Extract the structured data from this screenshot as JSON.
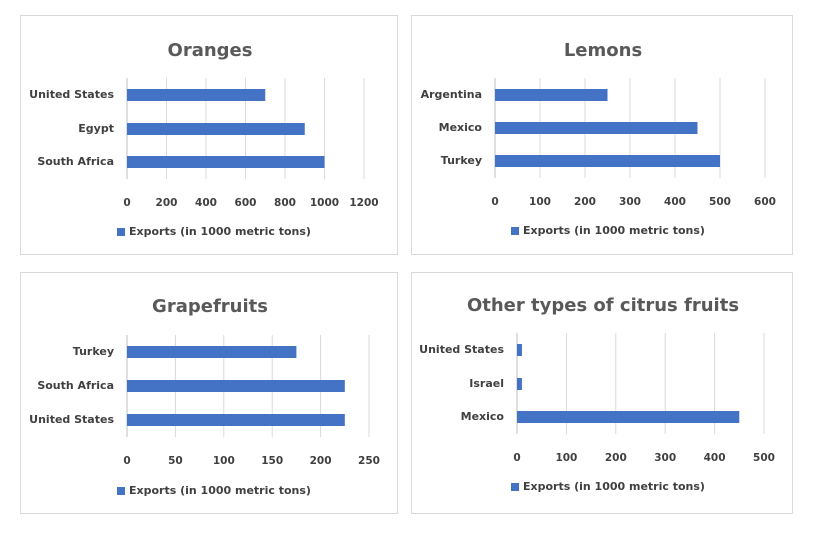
{
  "chart_data": [
    {
      "type": "bar",
      "orientation": "horizontal",
      "title": "Oranges",
      "categories": [
        "United States",
        "Egypt",
        "South Africa"
      ],
      "series": [
        {
          "name": "Exports (in 1000 metric tons)",
          "values": [
            700,
            900,
            1000
          ]
        }
      ],
      "xlim": [
        0,
        1200
      ],
      "xticks": [
        "0",
        "200",
        "400",
        "600",
        "800",
        "1000",
        "1200"
      ],
      "grid": true,
      "legend": "bottom",
      "color": "#4472c4"
    },
    {
      "type": "bar",
      "orientation": "horizontal",
      "title": "Lemons",
      "categories": [
        "Argentina",
        "Mexico",
        "Turkey"
      ],
      "series": [
        {
          "name": "Exports (in 1000 metric tons)",
          "values": [
            250,
            450,
            500
          ]
        }
      ],
      "xlim": [
        0,
        600
      ],
      "xticks": [
        "0",
        "100",
        "200",
        "300",
        "400",
        "500",
        "600"
      ],
      "grid": true,
      "legend": "bottom",
      "color": "#4472c4"
    },
    {
      "type": "bar",
      "orientation": "horizontal",
      "title": "Grapefruits",
      "categories": [
        "Turkey",
        "South Africa",
        "United States"
      ],
      "series": [
        {
          "name": "Exports (in 1000 metric tons)",
          "values": [
            175,
            225,
            225
          ]
        }
      ],
      "xlim": [
        0,
        250
      ],
      "xticks": [
        "0",
        "50",
        "100",
        "150",
        "200",
        "250"
      ],
      "grid": true,
      "legend": "bottom",
      "color": "#4472c4"
    },
    {
      "type": "bar",
      "orientation": "horizontal",
      "title": "Other types of citrus fruits",
      "categories": [
        "United States",
        "Israel",
        "Mexico"
      ],
      "series": [
        {
          "name": "Exports (in 1000 metric tons)",
          "values": [
            10,
            10,
            450
          ]
        }
      ],
      "xlim": [
        0,
        500
      ],
      "xticks": [
        "0",
        "100",
        "200",
        "300",
        "400",
        "500"
      ],
      "grid": true,
      "legend": "bottom",
      "color": "#4472c4"
    }
  ]
}
